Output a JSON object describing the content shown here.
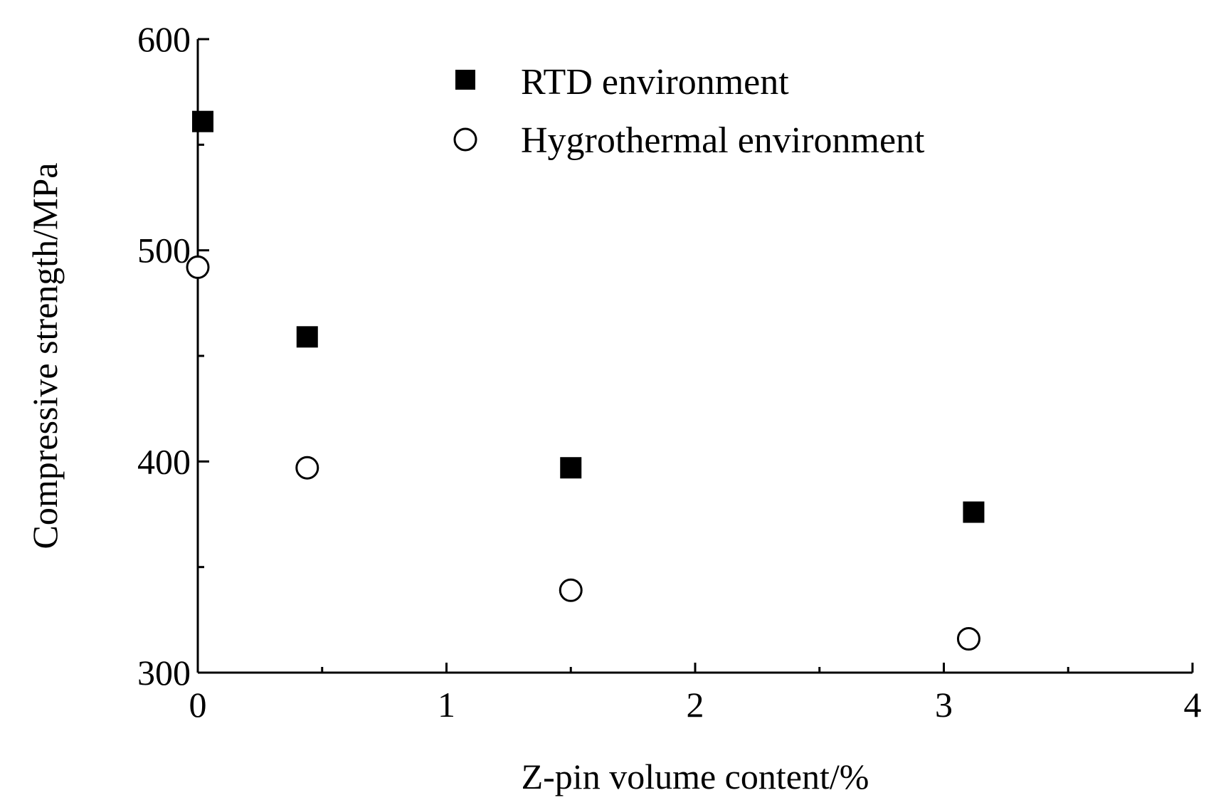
{
  "chart_data": {
    "type": "scatter",
    "title": "",
    "xlabel": "Z-pin volume content/%",
    "ylabel": "Compressive strength/MPa",
    "xlim": [
      0,
      4
    ],
    "ylim": [
      300,
      600
    ],
    "x_ticks": [
      0,
      1,
      2,
      3,
      4
    ],
    "x_tick_labels": [
      "0",
      "1",
      "2",
      "3",
      "4"
    ],
    "y_ticks": [
      300,
      400,
      500,
      600
    ],
    "y_tick_labels": [
      "300",
      "400",
      "500",
      "600"
    ],
    "grid": false,
    "legend_position": "top-right",
    "series": [
      {
        "name": "RTD environment",
        "marker": "filled-square",
        "color": "#000000",
        "x": [
          0.02,
          0.44,
          1.5,
          3.12
        ],
        "y": [
          561,
          459,
          397,
          376
        ]
      },
      {
        "name": "Hygrothermal environment",
        "marker": "open-circle",
        "color": "#000000",
        "x": [
          0.0,
          0.44,
          1.5,
          3.1
        ],
        "y": [
          492,
          397,
          339,
          316
        ]
      }
    ]
  }
}
